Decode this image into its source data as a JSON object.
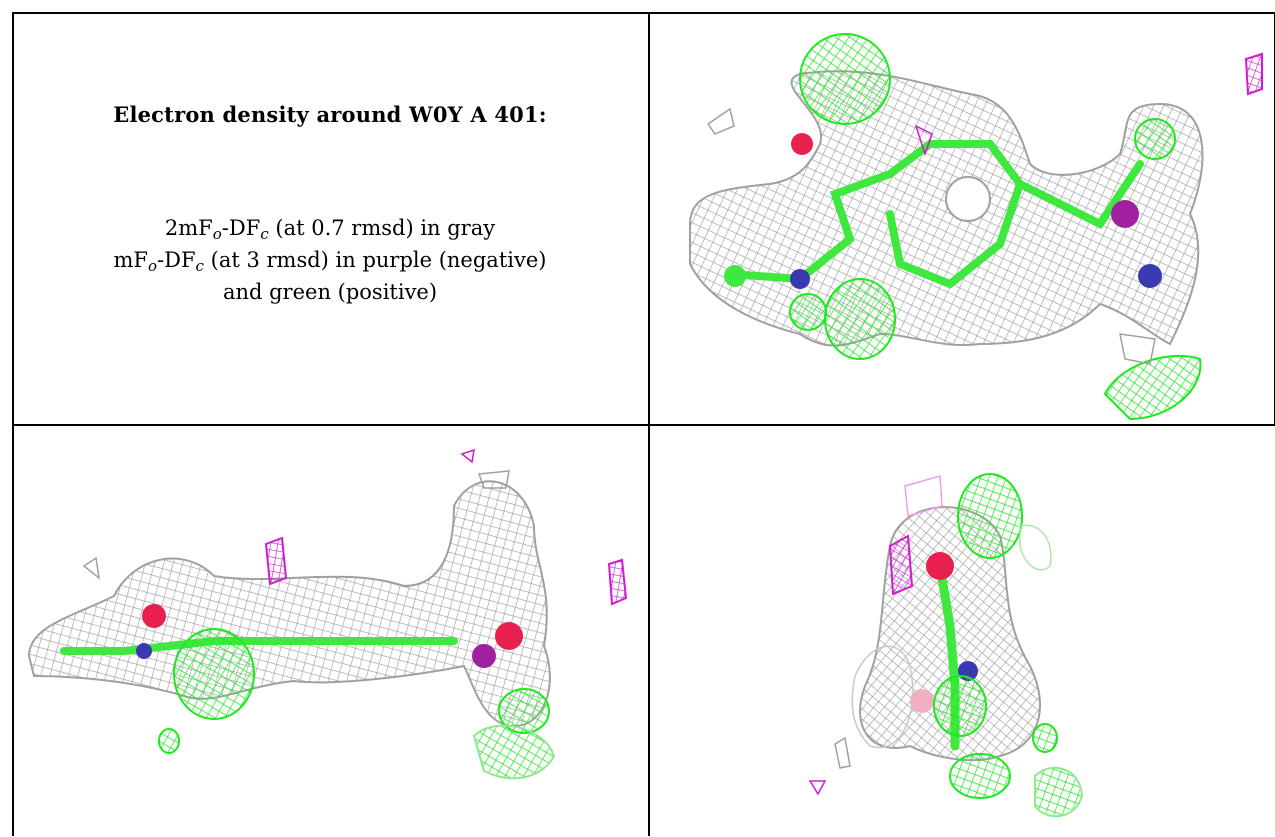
{
  "caption": {
    "title": "Electron density around W0Y A 401:",
    "line1_prefix": "2mF",
    "line1_sub_o": "o",
    "line1_mid": "-DF",
    "line1_sub_c": "c",
    "line1_suffix": " (at 0.7 rmsd) in gray",
    "line2_prefix": "mF",
    "line2_sub_o": "o",
    "line2_mid": "-DF",
    "line2_sub_c": "c",
    "line2_suffix": " (at 3 rmsd) in purple (negative)",
    "line3": "and green (positive)"
  },
  "colors": {
    "gray_mesh": "#a8a8a8",
    "green_mesh": "#1ee81e",
    "purple_mesh": "#d21ad2",
    "carbon": "#3fe83f",
    "oxygen": "#e8204f",
    "nitrogen": "#3a3ab0",
    "sulfur": "#d8a830",
    "phosphorus_like": "#a020a0"
  },
  "panels": [
    {
      "name": "view-top-right",
      "view": "face-on"
    },
    {
      "name": "view-bottom-left",
      "view": "edge-on"
    },
    {
      "name": "view-bottom-right",
      "view": "end-on"
    }
  ]
}
